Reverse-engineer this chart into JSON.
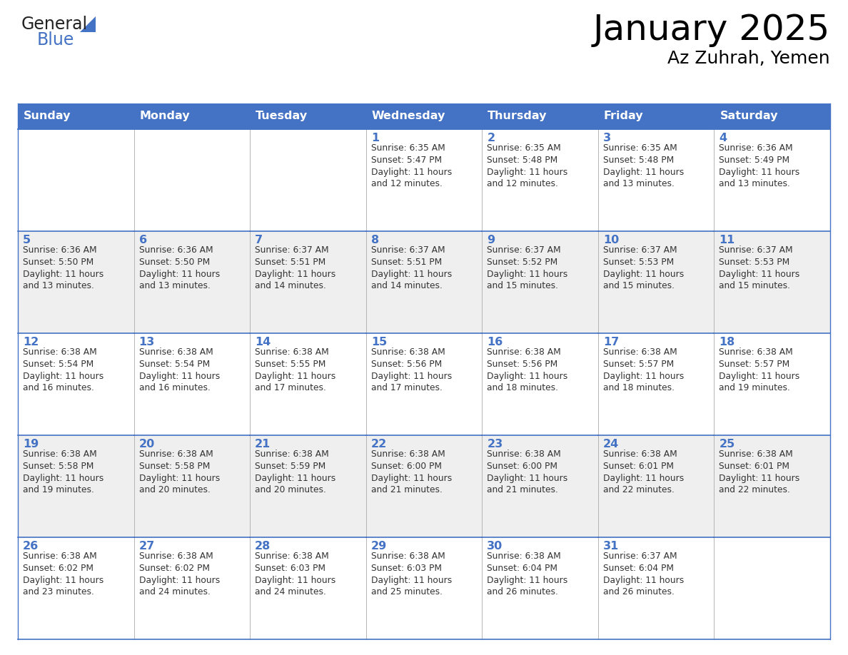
{
  "title": "January 2025",
  "subtitle": "Az Zuhrah, Yemen",
  "header_bg": "#4472C4",
  "header_text": "#FFFFFF",
  "cell_bg_light": "#FFFFFF",
  "cell_bg_alt": "#EFEFEF",
  "day_number_color": "#4472C4",
  "text_color": "#333333",
  "line_color": "#4472C4",
  "grid_line_color": "#AAAAAA",
  "days_of_week": [
    "Sunday",
    "Monday",
    "Tuesday",
    "Wednesday",
    "Thursday",
    "Friday",
    "Saturday"
  ],
  "weeks": [
    [
      {
        "day": "",
        "sunrise": "",
        "sunset": "",
        "daylight": ""
      },
      {
        "day": "",
        "sunrise": "",
        "sunset": "",
        "daylight": ""
      },
      {
        "day": "",
        "sunrise": "",
        "sunset": "",
        "daylight": ""
      },
      {
        "day": "1",
        "sunrise": "6:35 AM",
        "sunset": "5:47 PM",
        "daylight": "11 hours and 12 minutes."
      },
      {
        "day": "2",
        "sunrise": "6:35 AM",
        "sunset": "5:48 PM",
        "daylight": "11 hours and 12 minutes."
      },
      {
        "day": "3",
        "sunrise": "6:35 AM",
        "sunset": "5:48 PM",
        "daylight": "11 hours and 13 minutes."
      },
      {
        "day": "4",
        "sunrise": "6:36 AM",
        "sunset": "5:49 PM",
        "daylight": "11 hours and 13 minutes."
      }
    ],
    [
      {
        "day": "5",
        "sunrise": "6:36 AM",
        "sunset": "5:50 PM",
        "daylight": "11 hours and 13 minutes."
      },
      {
        "day": "6",
        "sunrise": "6:36 AM",
        "sunset": "5:50 PM",
        "daylight": "11 hours and 13 minutes."
      },
      {
        "day": "7",
        "sunrise": "6:37 AM",
        "sunset": "5:51 PM",
        "daylight": "11 hours and 14 minutes."
      },
      {
        "day": "8",
        "sunrise": "6:37 AM",
        "sunset": "5:51 PM",
        "daylight": "11 hours and 14 minutes."
      },
      {
        "day": "9",
        "sunrise": "6:37 AM",
        "sunset": "5:52 PM",
        "daylight": "11 hours and 15 minutes."
      },
      {
        "day": "10",
        "sunrise": "6:37 AM",
        "sunset": "5:53 PM",
        "daylight": "11 hours and 15 minutes."
      },
      {
        "day": "11",
        "sunrise": "6:37 AM",
        "sunset": "5:53 PM",
        "daylight": "11 hours and 15 minutes."
      }
    ],
    [
      {
        "day": "12",
        "sunrise": "6:38 AM",
        "sunset": "5:54 PM",
        "daylight": "11 hours and 16 minutes."
      },
      {
        "day": "13",
        "sunrise": "6:38 AM",
        "sunset": "5:54 PM",
        "daylight": "11 hours and 16 minutes."
      },
      {
        "day": "14",
        "sunrise": "6:38 AM",
        "sunset": "5:55 PM",
        "daylight": "11 hours and 17 minutes."
      },
      {
        "day": "15",
        "sunrise": "6:38 AM",
        "sunset": "5:56 PM",
        "daylight": "11 hours and 17 minutes."
      },
      {
        "day": "16",
        "sunrise": "6:38 AM",
        "sunset": "5:56 PM",
        "daylight": "11 hours and 18 minutes."
      },
      {
        "day": "17",
        "sunrise": "6:38 AM",
        "sunset": "5:57 PM",
        "daylight": "11 hours and 18 minutes."
      },
      {
        "day": "18",
        "sunrise": "6:38 AM",
        "sunset": "5:57 PM",
        "daylight": "11 hours and 19 minutes."
      }
    ],
    [
      {
        "day": "19",
        "sunrise": "6:38 AM",
        "sunset": "5:58 PM",
        "daylight": "11 hours and 19 minutes."
      },
      {
        "day": "20",
        "sunrise": "6:38 AM",
        "sunset": "5:58 PM",
        "daylight": "11 hours and 20 minutes."
      },
      {
        "day": "21",
        "sunrise": "6:38 AM",
        "sunset": "5:59 PM",
        "daylight": "11 hours and 20 minutes."
      },
      {
        "day": "22",
        "sunrise": "6:38 AM",
        "sunset": "6:00 PM",
        "daylight": "11 hours and 21 minutes."
      },
      {
        "day": "23",
        "sunrise": "6:38 AM",
        "sunset": "6:00 PM",
        "daylight": "11 hours and 21 minutes."
      },
      {
        "day": "24",
        "sunrise": "6:38 AM",
        "sunset": "6:01 PM",
        "daylight": "11 hours and 22 minutes."
      },
      {
        "day": "25",
        "sunrise": "6:38 AM",
        "sunset": "6:01 PM",
        "daylight": "11 hours and 22 minutes."
      }
    ],
    [
      {
        "day": "26",
        "sunrise": "6:38 AM",
        "sunset": "6:02 PM",
        "daylight": "11 hours and 23 minutes."
      },
      {
        "day": "27",
        "sunrise": "6:38 AM",
        "sunset": "6:02 PM",
        "daylight": "11 hours and 24 minutes."
      },
      {
        "day": "28",
        "sunrise": "6:38 AM",
        "sunset": "6:03 PM",
        "daylight": "11 hours and 24 minutes."
      },
      {
        "day": "29",
        "sunrise": "6:38 AM",
        "sunset": "6:03 PM",
        "daylight": "11 hours and 25 minutes."
      },
      {
        "day": "30",
        "sunrise": "6:38 AM",
        "sunset": "6:04 PM",
        "daylight": "11 hours and 26 minutes."
      },
      {
        "day": "31",
        "sunrise": "6:37 AM",
        "sunset": "6:04 PM",
        "daylight": "11 hours and 26 minutes."
      },
      {
        "day": "",
        "sunrise": "",
        "sunset": "",
        "daylight": ""
      }
    ]
  ],
  "logo_general_color": "#222222",
  "logo_blue_color": "#4472C4",
  "logo_triangle_color": "#4472C4",
  "fig_width": 11.88,
  "fig_height": 9.18,
  "dpi": 100
}
